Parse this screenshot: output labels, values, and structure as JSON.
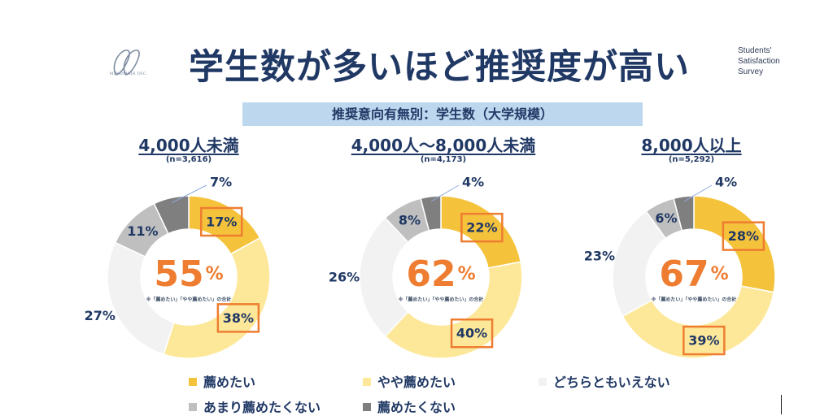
{
  "header": {
    "title": "学生数が多いほど推奨度が高い",
    "logo_text": "MINDMAIR INC.",
    "survey_label": [
      "Students'",
      "Satisfaction",
      "Survey"
    ],
    "subtitle": "推奨意向有無別：学生数（大学規模）"
  },
  "colors": {
    "recommend": "#f5c33b",
    "somewhat_recommend": "#fde89a",
    "neutral": "#f2f2f2",
    "not_really": "#bfbfbf",
    "not_recommend": "#7f7f7f",
    "highlight": "#ee7d31",
    "navy": "#203864"
  },
  "chart_data": {
    "type": "pie",
    "categories": [
      "薦めたい",
      "やや薦めたい",
      "どちらともいえない",
      "あまり薦めたくない",
      "薦めたくない"
    ],
    "center_note": "※「薦めたい」「やや薦めたい」の合計",
    "groups": [
      {
        "title": "4,000人未満",
        "n": "(n=3,616)",
        "values": [
          17,
          38,
          27,
          11,
          7
        ],
        "total": 55,
        "labels": [
          "17%",
          "38%",
          "27%",
          "11%",
          "7%"
        ]
      },
      {
        "title": "4,000人～8,000人未満",
        "n": "(n=4,173)",
        "values": [
          22,
          40,
          26,
          8,
          4
        ],
        "total": 62,
        "labels": [
          "22%",
          "40%",
          "26%",
          "8%",
          "4%"
        ]
      },
      {
        "title": "8,000人以上",
        "n": "(n=5,292)",
        "values": [
          28,
          39,
          23,
          6,
          4
        ],
        "total": 67,
        "labels": [
          "28%",
          "39%",
          "23%",
          "6%",
          "4%"
        ]
      }
    ],
    "legend": {
      "items": [
        "薦めたい",
        "やや薦めたい",
        "どちらともいえない",
        "あまり薦めたくない",
        "薦めたくない"
      ],
      "placement": "bottom"
    },
    "total_suffix": "%"
  }
}
